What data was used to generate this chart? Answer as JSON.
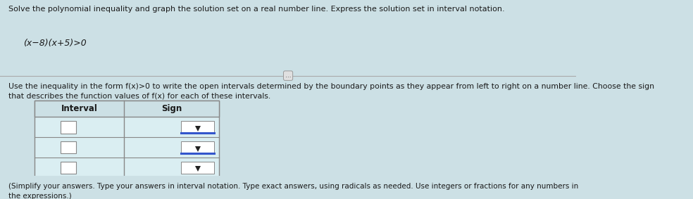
{
  "title_text": "Solve the polynomial inequality and graph the solution set on a real number line. Express the solution set in interval notation.",
  "equation": "(x−8)(x+5)>0",
  "instruction_text": "Use the inequality in the form f(x)>0 to write the open intervals determined by the boundary points as they appear from left to right on a number line. Choose the sign\nthat describes the function values of f(x) for each of these intervals.",
  "footer_text": "(Simplify your answers. Type your answers in interval notation. Type exact answers, using radicals as needed. Use integers or fractions for any numbers in\nthe expressions.)",
  "table_header": [
    "Interval",
    "Sign"
  ],
  "num_rows": 3,
  "bg_color": "#cce0e5",
  "text_color": "#1a1a1a",
  "title_fontsize": 8.0,
  "eq_fontsize": 9.0,
  "instruction_fontsize": 7.8,
  "footer_fontsize": 7.5,
  "border_color": "#777777",
  "dropdown_border_color": "#3355cc",
  "input_box_color": "#ffffff",
  "input_box_border": "#888888",
  "table_border_color": "#888888",
  "header_bg": "#cce0e5",
  "cell_bg": "#daeef2",
  "dots_text": "..."
}
